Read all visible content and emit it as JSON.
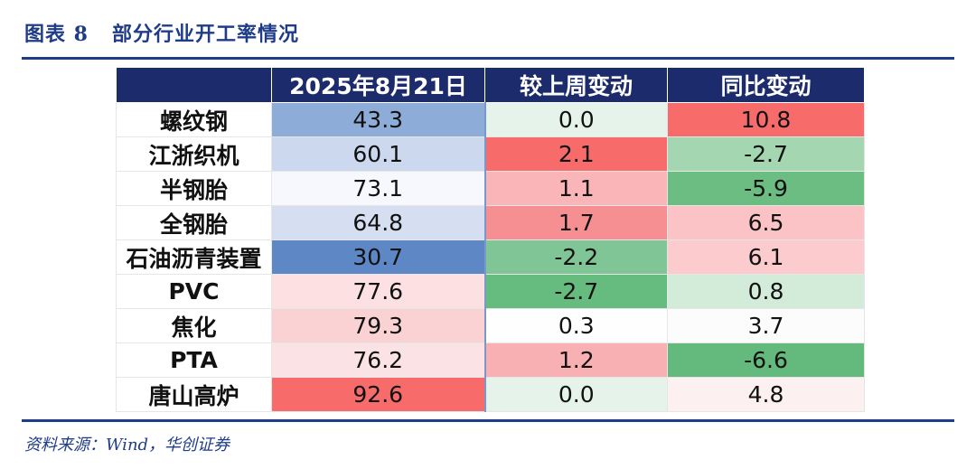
{
  "figure": {
    "label": "图表 8",
    "title": "部分行业开工率情况",
    "source": "资料来源：Wind，华创证券"
  },
  "table": {
    "headers": [
      "",
      "2025年8月21日",
      "较上周变动",
      "同比变动"
    ],
    "rows": [
      {
        "name": "螺纹钢",
        "rate": "43.3",
        "wow": "0.0",
        "yoy": "10.8"
      },
      {
        "name": "江浙织机",
        "rate": "60.1",
        "wow": "2.1",
        "yoy": "-2.7"
      },
      {
        "name": "半钢胎",
        "rate": "73.1",
        "wow": "1.1",
        "yoy": "-5.9"
      },
      {
        "name": "全钢胎",
        "rate": "64.8",
        "wow": "1.7",
        "yoy": "6.5"
      },
      {
        "name": "石油沥青装置",
        "rate": "30.7",
        "wow": "-2.2",
        "yoy": "6.1"
      },
      {
        "name": "PVC",
        "rate": "77.6",
        "wow": "-2.7",
        "yoy": "0.8"
      },
      {
        "name": "焦化",
        "rate": "79.3",
        "wow": "0.3",
        "yoy": "3.7"
      },
      {
        "name": "PTA",
        "rate": "76.2",
        "wow": "1.2",
        "yoy": "-6.6"
      },
      {
        "name": "唐山高炉",
        "rate": "92.6",
        "wow": "0.0",
        "yoy": "4.8"
      }
    ],
    "colors": {
      "header_bg": "#1b2b6b",
      "rate": [
        "#8eacd8",
        "#cbd8ee",
        "#f7f8fd",
        "#d5dff1",
        "#5e87c6",
        "#fce0e2",
        "#fad2d4",
        "#fbe2e4",
        "#f76b6b"
      ],
      "wow": [
        "#e6f3ea",
        "#f76b6b",
        "#f9b5b8",
        "#f58f91",
        "#80c595",
        "#66bb7e",
        "#fefefe",
        "#f8b0b2",
        "#e6f3ea"
      ],
      "yoy": [
        "#f76b6b",
        "#a3d6b1",
        "#6bbd82",
        "#fbc3c6",
        "#fbcbcd",
        "#d3ecda",
        "#fcfcfc",
        "#64ba7c",
        "#fdf0f1"
      ]
    }
  }
}
